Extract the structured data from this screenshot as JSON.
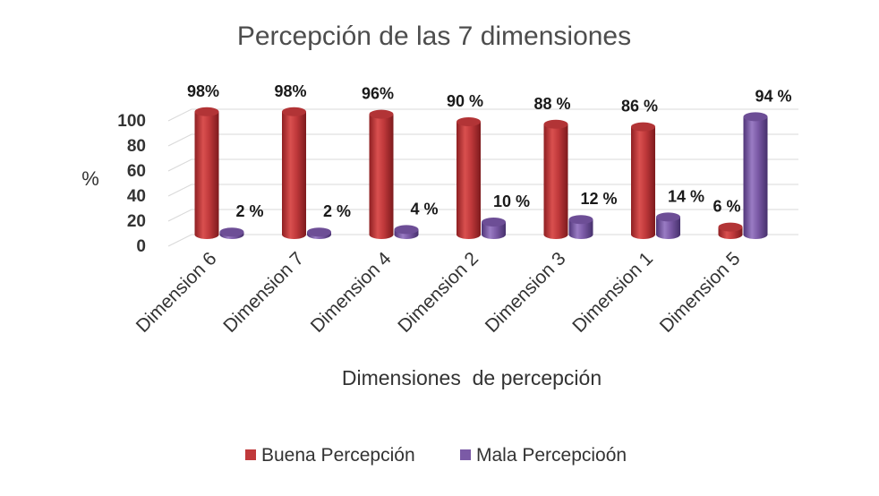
{
  "chart_data": {
    "type": "bar",
    "title": "Percepción de las 7 dimensiones",
    "ylabel": "%",
    "xlabel": "Dimensiones  de percepción",
    "ylim": [
      0,
      100
    ],
    "yticks": [
      0,
      20,
      40,
      60,
      80,
      100
    ],
    "grid": true,
    "legend_position": "bottom",
    "categories": [
      "Dimension 6",
      "Dimension 7",
      "Dimension 4",
      "Dimension 2",
      "Dimension 3",
      "Dimension 1",
      "Dimension 5"
    ],
    "series": [
      {
        "name": "Buena Percepción",
        "color": "#c0393b",
        "values": [
          98,
          98,
          96,
          90,
          88,
          86,
          6
        ],
        "labels": [
          "98%",
          "98%",
          "96%",
          "90 %",
          "88 %",
          "86 %",
          "6 %"
        ]
      },
      {
        "name": "Mala Percepcioón",
        "color": "#7b5aa6",
        "values": [
          2,
          2,
          4,
          10,
          12,
          14,
          94
        ],
        "labels": [
          "2 %",
          "2 %",
          "4 %",
          "10 %",
          "12 %",
          "14 %",
          "94 %"
        ]
      }
    ]
  }
}
